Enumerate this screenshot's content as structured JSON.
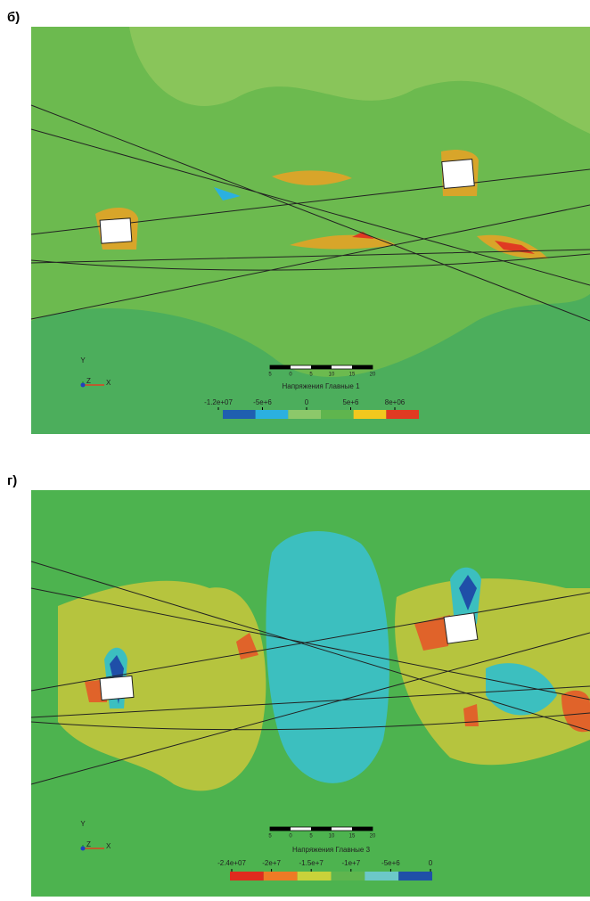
{
  "panels": [
    {
      "label": "б)",
      "legend": {
        "title": "Напряжения Главные 1",
        "ticks": [
          "-1.2e+07",
          "-5e+6",
          "0",
          "5e+6",
          "8e+06"
        ],
        "colors": [
          "#1f5fb0",
          "#2bb0e0",
          "#8cc86a",
          "#5fb54e",
          "#f2c81e",
          "#e03a22"
        ]
      },
      "scale": [
        "5",
        "0",
        "5",
        "10",
        "15",
        "20"
      ],
      "axes": {
        "y": "Y",
        "z": "Z",
        "x": "X"
      }
    },
    {
      "label": "г)",
      "legend": {
        "title": "Напряжения Главные 3",
        "ticks": [
          "-2.4e+07",
          "-2e+7",
          "-1.5e+7",
          "-1e+7",
          "-5e+6",
          "0"
        ],
        "colors": [
          "#e02b1e",
          "#ee7a25",
          "#c9d23a",
          "#5fb54e",
          "#6cc8c8",
          "#1f4fa8"
        ]
      },
      "scale": [
        "5",
        "0",
        "5",
        "10",
        "15",
        "20"
      ],
      "axes": {
        "y": "Y",
        "z": "Z",
        "x": "X"
      }
    }
  ]
}
